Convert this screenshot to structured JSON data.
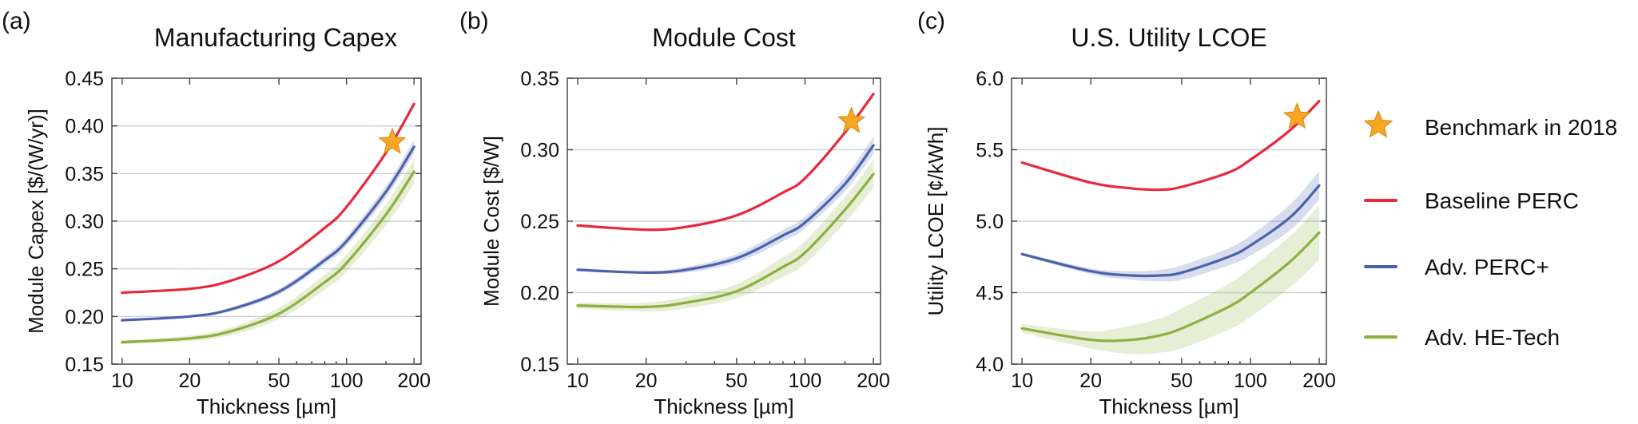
{
  "chart_data": [
    {
      "type": "line",
      "panel_label": "(a)",
      "title": "Manufacturing Capex",
      "xlabel": "Thickness [µm]",
      "ylabel": "Module Capex [$/(W/yr)]",
      "xscale": "log",
      "xlim": [
        9,
        215
      ],
      "ylim": [
        0.15,
        0.45
      ],
      "xticks": [
        10,
        20,
        50,
        100,
        200
      ],
      "xtick_labels": [
        "10",
        "20",
        "50",
        "100",
        "200"
      ],
      "yticks": [
        0.15,
        0.2,
        0.25,
        0.3,
        0.35,
        0.4,
        0.45
      ],
      "ytick_labels": [
        "0.15",
        "0.20",
        "0.25",
        "0.30",
        "0.35",
        "0.40",
        "0.45"
      ],
      "grid": true,
      "x": [
        10,
        20,
        30,
        50,
        80,
        100,
        150,
        200
      ],
      "series": [
        {
          "name": "Baseline PERC",
          "color": "#e8283a",
          "band": [
            0,
            0,
            0,
            0,
            0,
            0,
            0,
            0
          ],
          "values": [
            0.225,
            0.229,
            0.237,
            0.258,
            0.293,
            0.315,
            0.372,
            0.423
          ]
        },
        {
          "name": "Adv. PERC+",
          "color": "#4a62ad",
          "band": [
            0.001,
            0.001,
            0.002,
            0.003,
            0.004,
            0.005,
            0.006,
            0.007
          ],
          "values": [
            0.196,
            0.2,
            0.207,
            0.226,
            0.259,
            0.279,
            0.331,
            0.378
          ]
        },
        {
          "name": "Adv. HE-Tech",
          "color": "#8bb03f",
          "band": [
            0.002,
            0.003,
            0.004,
            0.006,
            0.008,
            0.009,
            0.011,
            0.013
          ],
          "values": [
            0.173,
            0.177,
            0.184,
            0.203,
            0.236,
            0.256,
            0.307,
            0.352
          ]
        }
      ],
      "benchmark": {
        "x": 160,
        "y": 0.383
      }
    },
    {
      "type": "line",
      "panel_label": "(b)",
      "title": "Module Cost",
      "xlabel": "Thickness [µm]",
      "ylabel": "Module Cost [$/W]",
      "xscale": "log",
      "xlim": [
        9,
        215
      ],
      "ylim": [
        0.15,
        0.35
      ],
      "xticks": [
        10,
        20,
        50,
        100,
        200
      ],
      "xtick_labels": [
        "10",
        "20",
        "50",
        "100",
        "200"
      ],
      "yticks": [
        0.15,
        0.2,
        0.25,
        0.3,
        0.35
      ],
      "ytick_labels": [
        "0.15",
        "0.20",
        "0.25",
        "0.30",
        "0.35"
      ],
      "grid": true,
      "x": [
        10,
        20,
        30,
        50,
        80,
        100,
        150,
        200
      ],
      "series": [
        {
          "name": "Baseline PERC",
          "color": "#e8283a",
          "band": [
            0,
            0,
            0,
            0,
            0,
            0,
            0,
            0
          ],
          "values": [
            0.247,
            0.244,
            0.246,
            0.254,
            0.27,
            0.28,
            0.312,
            0.339
          ]
        },
        {
          "name": "Adv. PERC+",
          "color": "#4a62ad",
          "band": [
            0.001,
            0.001,
            0.002,
            0.003,
            0.004,
            0.004,
            0.005,
            0.006
          ],
          "values": [
            0.216,
            0.214,
            0.216,
            0.224,
            0.24,
            0.249,
            0.276,
            0.303
          ]
        },
        {
          "name": "Adv. HE-Tech",
          "color": "#8bb03f",
          "band": [
            0.002,
            0.003,
            0.004,
            0.005,
            0.007,
            0.008,
            0.009,
            0.01
          ],
          "values": [
            0.191,
            0.19,
            0.193,
            0.201,
            0.218,
            0.228,
            0.258,
            0.283
          ]
        }
      ],
      "benchmark": {
        "x": 160,
        "y": 0.32
      }
    },
    {
      "type": "line",
      "panel_label": "(c)",
      "title": "U.S. Utility LCOE",
      "xlabel": "Thickness [µm]",
      "ylabel": "Utility LCOE [¢/kWh]",
      "xscale": "log",
      "xlim": [
        9,
        215
      ],
      "ylim": [
        4.0,
        6.0
      ],
      "xticks": [
        10,
        20,
        50,
        100,
        200
      ],
      "xtick_labels": [
        "10",
        "20",
        "50",
        "100",
        "200"
      ],
      "yticks": [
        4.0,
        4.5,
        5.0,
        5.5,
        6.0
      ],
      "ytick_labels": [
        "4.0",
        "4.5",
        "5.0",
        "5.5",
        "6.0"
      ],
      "grid": true,
      "x": [
        10,
        20,
        30,
        40,
        50,
        80,
        100,
        150,
        200
      ],
      "series": [
        {
          "name": "Baseline PERC",
          "color": "#e8283a",
          "band": [
            0,
            0,
            0,
            0,
            0,
            0,
            0,
            0,
            0
          ],
          "values": [
            5.41,
            5.27,
            5.23,
            5.22,
            5.24,
            5.34,
            5.43,
            5.64,
            5.84
          ]
        },
        {
          "name": "Adv. PERC+",
          "color": "#4a62ad",
          "band": [
            0.01,
            0.02,
            0.03,
            0.04,
            0.05,
            0.06,
            0.07,
            0.09,
            0.1
          ],
          "values": [
            4.77,
            4.65,
            4.62,
            4.62,
            4.64,
            4.75,
            4.83,
            5.03,
            5.25
          ]
        },
        {
          "name": "Adv. HE-Tech",
          "color": "#8bb03f",
          "band": [
            0.03,
            0.06,
            0.1,
            0.12,
            0.14,
            0.16,
            0.17,
            0.18,
            0.19
          ],
          "values": [
            4.25,
            4.17,
            4.17,
            4.2,
            4.25,
            4.4,
            4.5,
            4.72,
            4.92
          ]
        }
      ],
      "benchmark": {
        "x": 160,
        "y": 5.73
      }
    }
  ],
  "legend": {
    "placement": "right",
    "items": [
      {
        "label": "Benchmark in 2018",
        "marker": "star",
        "color": "#f5a623"
      },
      {
        "label": "Baseline PERC",
        "marker": "line",
        "color": "#e8283a"
      },
      {
        "label": "Adv. PERC+",
        "marker": "line",
        "color": "#4a62ad"
      },
      {
        "label": "Adv. HE-Tech",
        "marker": "line",
        "color": "#8bb03f"
      }
    ]
  }
}
